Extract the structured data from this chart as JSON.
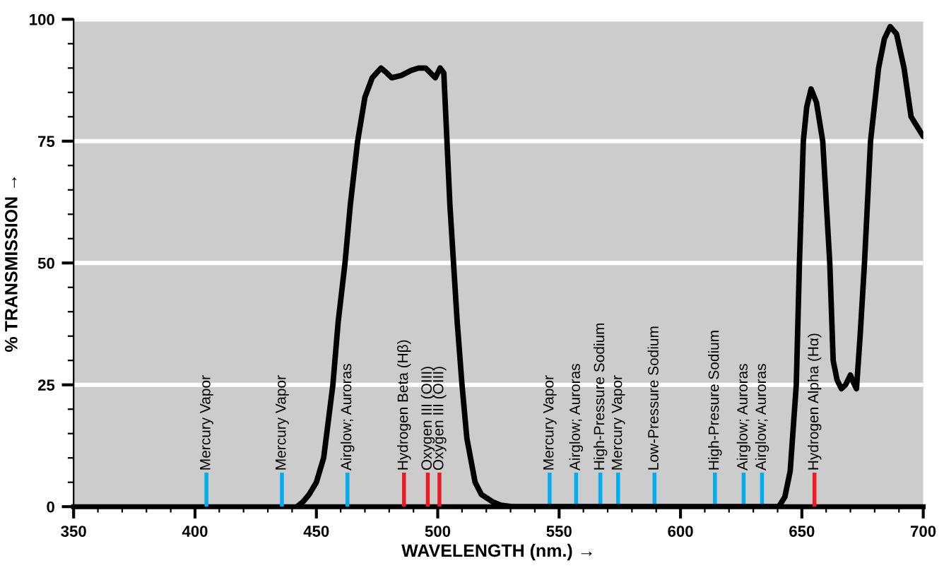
{
  "chart_data": {
    "type": "line",
    "xlabel": "WAVELENGTH (nm.) →",
    "ylabel": "% TRANSMISSION →",
    "xlim": [
      350,
      700
    ],
    "ylim": [
      0,
      100
    ],
    "xticks": [
      350,
      {
        "value": 360,
        "label": null
      },
      {
        "value": 370,
        "label": null
      },
      {
        "value": 380,
        "label": null
      },
      {
        "value": 390,
        "label": null
      },
      400,
      {
        "value": 410,
        "label": null
      },
      {
        "value": 420,
        "label": null
      },
      {
        "value": 430,
        "label": null
      },
      {
        "value": 440,
        "label": null
      },
      450,
      {
        "value": 460,
        "label": null
      },
      {
        "value": 470,
        "label": null
      },
      {
        "value": 480,
        "label": null
      },
      {
        "value": 490,
        "label": null
      },
      500,
      {
        "value": 510,
        "label": null
      },
      {
        "value": 520,
        "label": null
      },
      {
        "value": 530,
        "label": null
      },
      {
        "value": 540,
        "label": null
      },
      550,
      {
        "value": 560,
        "label": null
      },
      {
        "value": 570,
        "label": null
      },
      {
        "value": 580,
        "label": null
      },
      {
        "value": 590,
        "label": null
      },
      600,
      {
        "value": 610,
        "label": null
      },
      {
        "value": 620,
        "label": null
      },
      {
        "value": 630,
        "label": null
      },
      {
        "value": 640,
        "label": null
      },
      650,
      {
        "value": 660,
        "label": null
      },
      {
        "value": 670,
        "label": null
      },
      {
        "value": 680,
        "label": null
      },
      {
        "value": 690,
        "label": null
      },
      700
    ],
    "yticks": [
      0,
      {
        "value": 5,
        "label": null
      },
      {
        "value": 10,
        "label": null
      },
      {
        "value": 15,
        "label": null
      },
      {
        "value": 20,
        "label": null
      },
      25,
      {
        "value": 30,
        "label": null
      },
      {
        "value": 35,
        "label": null
      },
      {
        "value": 40,
        "label": null
      },
      {
        "value": 45,
        "label": null
      },
      50,
      {
        "value": 55,
        "label": null
      },
      {
        "value": 60,
        "label": null
      },
      {
        "value": 65,
        "label": null
      },
      {
        "value": 70,
        "label": null
      },
      75,
      {
        "value": 80,
        "label": null
      },
      {
        "value": 85,
        "label": null
      },
      {
        "value": 90,
        "label": null
      },
      {
        "value": 95,
        "label": null
      },
      100
    ],
    "grid": "y",
    "series": [
      {
        "color": "#000000",
        "x": [
          442,
          444.5,
          447,
          450,
          453,
          456.8,
          459,
          461.8,
          464,
          467,
          470,
          473,
          476.6,
          479,
          481,
          485,
          489,
          492,
          495,
          497,
          499,
          501,
          502.5,
          503.8,
          505,
          506.5,
          508,
          510,
          512,
          515.4,
          518,
          522.6,
          526,
          530.5,
          640.5,
          643,
          645.2,
          647.7,
          649,
          650.6,
          652,
          653.8,
          656,
          658.6,
          661.5,
          662.9,
          664.5,
          666.3,
          668,
          670,
          671.2,
          672.5,
          674,
          675.8,
          678.3,
          681.6,
          684,
          686.4,
          689,
          692.1,
          695,
          697.5,
          700
        ],
        "values": [
          0,
          1,
          2.5,
          5,
          10,
          25,
          38,
          50,
          62,
          75,
          84,
          88,
          90,
          89,
          88,
          88.5,
          89.5,
          90,
          90,
          89,
          88,
          90,
          89,
          75,
          62,
          50,
          38,
          25,
          14,
          5,
          2.5,
          1,
          0.3,
          0,
          0,
          2,
          7.3,
          25,
          50,
          75,
          82,
          85.7,
          83,
          75,
          50,
          30,
          26,
          24.2,
          25,
          27,
          25.5,
          24.2,
          35,
          50,
          75,
          90,
          96,
          98.5,
          97,
          90,
          80,
          78,
          76
        ]
      },
      {
        "type": "bar",
        "x": [
          404.7,
          435.8,
          462.8,
          486.1,
          495.9,
          500.7,
          546.1,
          557,
          567,
          574.3,
          589.3,
          614.2,
          626,
          633.6,
          655.2
        ],
        "values": [
          7,
          7,
          7,
          7,
          7,
          7,
          7,
          7,
          7,
          7,
          7,
          7,
          7,
          7,
          7
        ],
        "colors": [
          "#00aeef",
          "#00aeef",
          "#00aeef",
          "#ed1c24",
          "#ed1c24",
          "#ed1c24",
          "#00aeef",
          "#00aeef",
          "#00aeef",
          "#00aeef",
          "#00aeef",
          "#00aeef",
          "#00aeef",
          "#00aeef",
          "#ed1c24"
        ]
      }
    ],
    "annotations": [
      {
        "text": "Mercury Vapor",
        "x": 404.7,
        "y": 7
      },
      {
        "text": "Mercury Vapor",
        "x": 435.8,
        "y": 7
      },
      {
        "text": "Airglow; Auroras",
        "x": 462.8,
        "y": 7
      },
      {
        "text": "Hydrogen Beta (Hβ)",
        "x": 486.1,
        "y": 7
      },
      {
        "text": "Oxygen III (OIII)",
        "x": 495.9,
        "y": 7
      },
      {
        "text": "Oxygen III (OIII)",
        "x": 500.7,
        "y": 7
      },
      {
        "text": "Mercury Vapor",
        "x": 546.1,
        "y": 7
      },
      {
        "text": "Airglow; Auroras",
        "x": 557,
        "y": 7
      },
      {
        "text": "High-Pressure Sodium",
        "x": 567,
        "y": 7
      },
      {
        "text": "Mercury Vapor",
        "x": 574.3,
        "y": 7
      },
      {
        "text": "Low-Pressure Sodium",
        "x": 589.3,
        "y": 7
      },
      {
        "text": "High-Presure Sodium",
        "x": 614.2,
        "y": 7
      },
      {
        "text": "Airglow; Auroras",
        "x": 626,
        "y": 7
      },
      {
        "text": "Airglow; Auroras",
        "x": 633.6,
        "y": 7
      },
      {
        "text": "Hydrogen Alpha (Hα)",
        "x": 655.2,
        "y": 7
      }
    ]
  }
}
